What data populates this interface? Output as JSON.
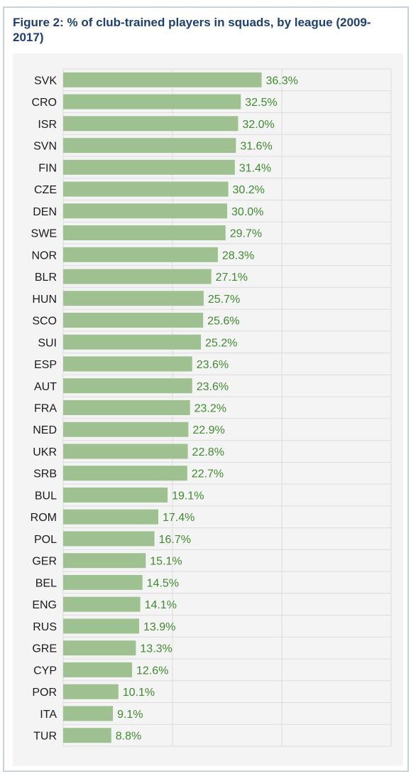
{
  "chart_data": {
    "type": "bar",
    "orientation": "horizontal",
    "title": "Figure 2: % of club-trained players in squads, by league (2009-2017)",
    "categories": [
      "SVK",
      "CRO",
      "ISR",
      "SVN",
      "FIN",
      "CZE",
      "DEN",
      "SWE",
      "NOR",
      "BLR",
      "HUN",
      "SCO",
      "SUI",
      "ESP",
      "AUT",
      "FRA",
      "NED",
      "UKR",
      "SRB",
      "BUL",
      "ROM",
      "POL",
      "GER",
      "BEL",
      "ENG",
      "RUS",
      "GRE",
      "CYP",
      "POR",
      "ITA",
      "TUR"
    ],
    "values": [
      36.3,
      32.5,
      32.0,
      31.6,
      31.4,
      30.2,
      30.0,
      29.7,
      28.3,
      27.1,
      25.7,
      25.6,
      25.2,
      23.6,
      23.6,
      23.2,
      22.9,
      22.8,
      22.7,
      19.1,
      17.4,
      16.7,
      15.1,
      14.5,
      14.1,
      13.9,
      13.3,
      12.6,
      10.1,
      9.1,
      8.8
    ],
    "value_labels": [
      "36.3%",
      "32.5%",
      "32.0%",
      "31.6%",
      "31.4%",
      "30.2%",
      "30.0%",
      "29.7%",
      "28.3%",
      "27.1%",
      "25.7%",
      "25.6%",
      "25.2%",
      "23.6%",
      "23.6%",
      "23.2%",
      "22.9%",
      "22.8%",
      "22.7%",
      "19.1%",
      "17.4%",
      "16.7%",
      "15.1%",
      "14.5%",
      "14.1%",
      "13.9%",
      "13.3%",
      "12.6%",
      "10.1%",
      "9.1%",
      "8.8%"
    ],
    "xlim": [
      0,
      60
    ],
    "grid": true,
    "colors": {
      "bar": "#9fc192",
      "value_label": "#3f8a2f",
      "title": "#1d3f72",
      "border": "#c5d3df",
      "panel": "#f4f4f4"
    }
  }
}
